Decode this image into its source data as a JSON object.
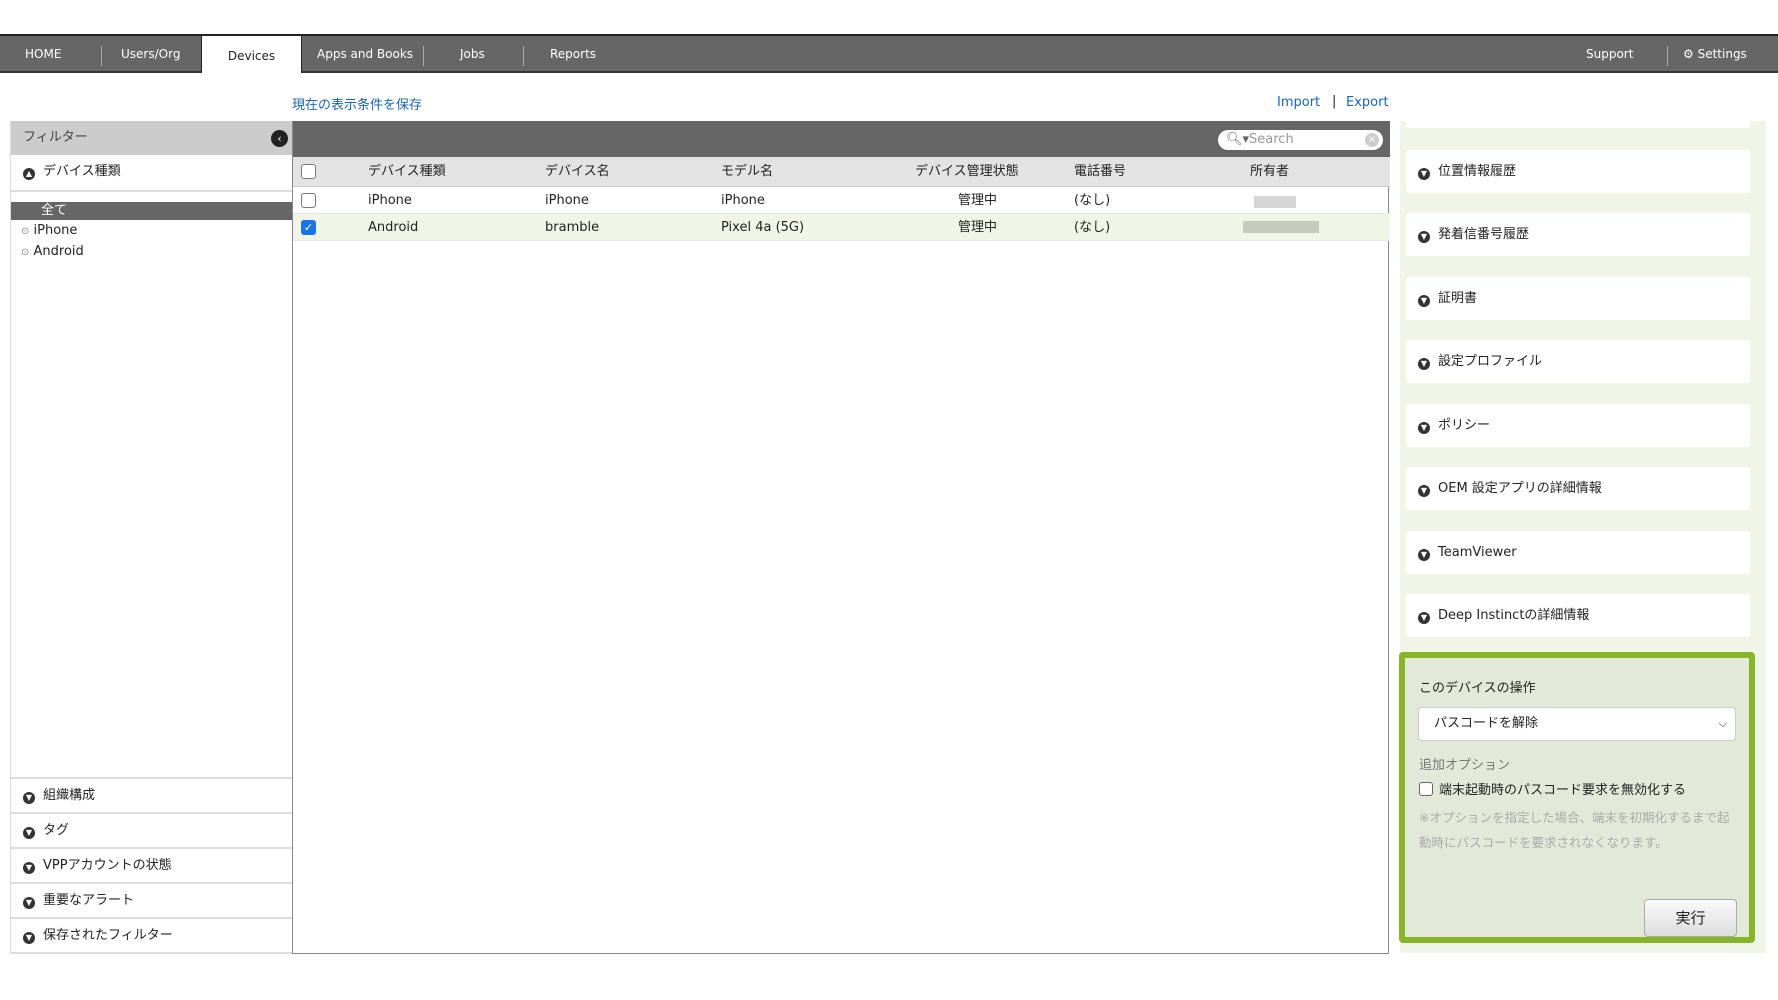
{
  "nav": {
    "tabs": [
      "HOME",
      "Users/Org",
      "Devices",
      "Apps and Books",
      "Jobs",
      "Reports"
    ],
    "active": "Devices",
    "support": "Support",
    "settings": "Settings"
  },
  "links": {
    "save_view": "現在の表示条件を保存",
    "import": "Import",
    "export": "Export"
  },
  "filter": {
    "title": "フィルター",
    "device_type": "デバイス種類",
    "options": [
      "全て",
      "iPhone",
      "Android"
    ],
    "selected": "全て",
    "sections": [
      "組織構成",
      "タグ",
      "VPPアカウントの状態",
      "重要なアラート",
      "保存されたフィルター"
    ]
  },
  "table": {
    "search_placeholder": "Search",
    "columns": [
      "デバイス種類",
      "デバイス名",
      "モデル名",
      "デバイス管理状態",
      "電話番号",
      "所有者"
    ],
    "rows": [
      {
        "checked": false,
        "type": "iPhone",
        "name": "iPhone",
        "model": "iPhone",
        "status": "管理中",
        "phone": "(なし)"
      },
      {
        "checked": true,
        "type": "Android",
        "name": "bramble",
        "model": "Pixel 4a (5G)",
        "status": "管理中",
        "phone": "(なし)"
      }
    ]
  },
  "right": {
    "sections": [
      "位置情報履歴",
      "発着信番号履歴",
      "証明書",
      "設定プロファイル",
      "ポリシー",
      "OEM 設定アプリの詳細情報",
      "TeamViewer",
      "Deep Instinctの詳細情報"
    ],
    "ops": {
      "title": "このデバイスの操作",
      "action": "パスコードを解除",
      "options_label": "追加オプション",
      "option": "端末起動時のパスコード要求を無効化する",
      "option_checked": false,
      "note": "※オプションを指定した場合、端末を初期化するまで起動時にパスコードを要求されなくなります。",
      "run": "実行",
      "accent": "#86b52a"
    }
  }
}
